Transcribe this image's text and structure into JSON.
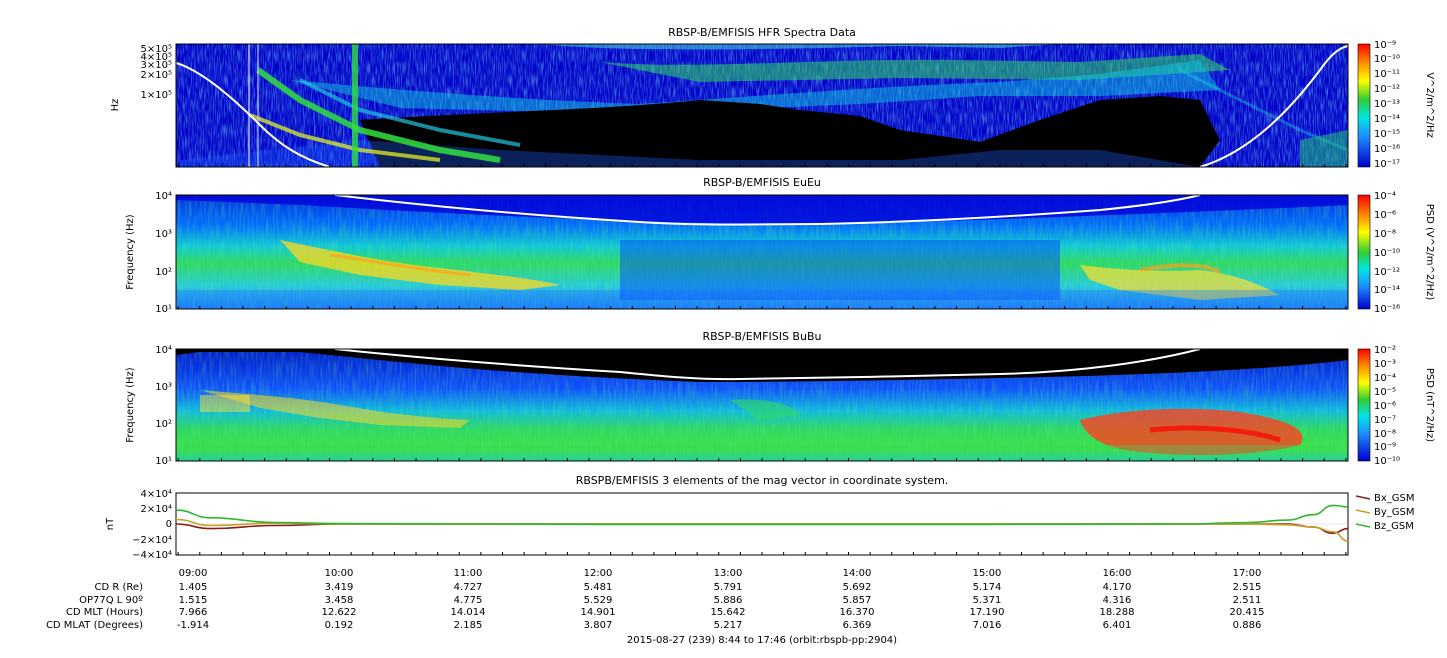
{
  "colors": {
    "panel_bg": "#00008b",
    "void": "#000000",
    "bx": "#8b1a1a",
    "by": "#c8a028",
    "bz": "#2db82d",
    "overlay": "#ffffff"
  },
  "chart_data": [
    {
      "type": "heatmap",
      "title": "RBSP-B/EMFISIS  HFR Spectra Data",
      "ylabel": "Hz",
      "colorbar_label": "V^2/m^2/Hz",
      "y_ticks": [
        "5×10⁵",
        "4×10⁵",
        "3×10⁵",
        "2×10⁵",
        "1×10⁵"
      ],
      "colorbar_ticks": [
        "10⁻⁹",
        "10⁻¹⁰",
        "10⁻¹¹",
        "10⁻¹²",
        "10⁻¹³",
        "10⁻¹⁴",
        "10⁻¹⁵",
        "10⁻¹⁶",
        "10⁻¹⁷"
      ]
    },
    {
      "type": "heatmap",
      "title": "RBSP-B/EMFISIS  EuEu",
      "ylabel": "Frequency (Hz)",
      "colorbar_label": "PSD (V^2/m^2/Hz)",
      "y_ticks": [
        "10⁴",
        "10³",
        "10²",
        "10¹"
      ],
      "colorbar_ticks": [
        "10⁻⁴",
        "10⁻⁶",
        "10⁻⁸",
        "10⁻¹⁰",
        "10⁻¹²",
        "10⁻¹⁴",
        "10⁻¹⁶"
      ]
    },
    {
      "type": "heatmap",
      "title": "RBSP-B/EMFISIS  BuBu",
      "ylabel": "Frequency (Hz)",
      "colorbar_label": "PSD (nT^2/Hz)",
      "y_ticks": [
        "10⁴",
        "10³",
        "10²",
        "10¹"
      ],
      "colorbar_ticks": [
        "10⁻²",
        "10⁻³",
        "10⁻⁴",
        "10⁻⁵",
        "10⁻⁶",
        "10⁻⁷",
        "10⁻⁸",
        "10⁻⁹",
        "10⁻¹⁰"
      ]
    },
    {
      "type": "line",
      "title": "RBSPB/EMFISIS  3 elements of the mag vector in coordinate system.",
      "ylabel": "nT",
      "ylim": [
        -40000,
        40000
      ],
      "y_ticks": [
        "4×10⁴",
        "2×10⁴",
        "0",
        "−2×10⁴",
        "−4×10⁴"
      ],
      "x_ticks": [
        "09:00",
        "10:00",
        "11:00",
        "12:00",
        "13:00",
        "14:00",
        "15:00",
        "16:00",
        "17:00"
      ],
      "x_hours": [
        8.733,
        9.0,
        9.5,
        10.0,
        11.0,
        12.0,
        13.0,
        14.0,
        15.0,
        16.0,
        16.5,
        17.0,
        17.3,
        17.5,
        17.65,
        17.767
      ],
      "series": [
        {
          "name": "Bx_GSM",
          "color": "#8b1a1a",
          "values": [
            0,
            -6000,
            -2000,
            0,
            0,
            0,
            0,
            0,
            0,
            0,
            0,
            0,
            0,
            -4000,
            -12000,
            -6000
          ]
        },
        {
          "name": "By_GSM",
          "color": "#c8a028",
          "values": [
            6000,
            -2000,
            1000,
            0,
            0,
            0,
            0,
            0,
            0,
            0,
            0,
            0,
            -1000,
            -4000,
            -10000,
            -22000
          ]
        },
        {
          "name": "Bz_GSM",
          "color": "#2db82d",
          "values": [
            18000,
            8000,
            2000,
            500,
            0,
            -500,
            -500,
            -500,
            -500,
            -200,
            0,
            2000,
            5000,
            12000,
            24000,
            22000
          ]
        }
      ],
      "legend": "right"
    }
  ],
  "ephemeris": {
    "rows": [
      {
        "label": "CD R (Re)",
        "values": [
          "1.405",
          "3.419",
          "4.727",
          "5.481",
          "5.791",
          "5.692",
          "5.174",
          "4.170",
          "2.515"
        ]
      },
      {
        "label": "OP77Q L 90º",
        "values": [
          "1.515",
          "3.458",
          "4.775",
          "5.529",
          "5.886",
          "5.857",
          "5.371",
          "4.316",
          "2.511"
        ]
      },
      {
        "label": "CD MLT (Hours)",
        "values": [
          "7.966",
          "12.622",
          "14.014",
          "14.901",
          "15.642",
          "16.370",
          "17.190",
          "18.288",
          "20.415"
        ]
      },
      {
        "label": "CD MLAT (Degrees)",
        "values": [
          "-1.914",
          "0.192",
          "2.185",
          "3.807",
          "5.217",
          "6.369",
          "7.016",
          "6.401",
          "0.886"
        ]
      }
    ],
    "footer": "2015-08-27 (239) 8:44 to 17:46 (orbit:rbspb-pp:2904)"
  }
}
